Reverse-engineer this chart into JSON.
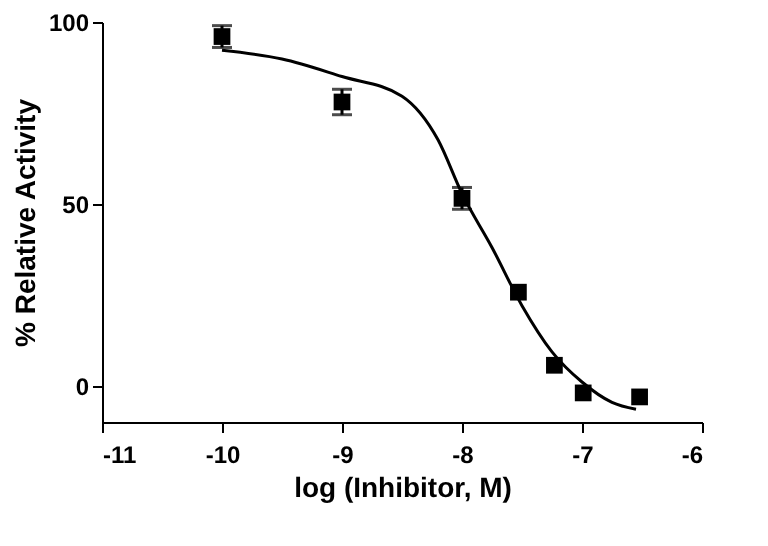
{
  "chart_data": {
    "type": "scatter",
    "xlabel": "log (Inhibitor, M)",
    "ylabel": "% Relative  Activity",
    "xlim": [
      -11,
      -6
    ],
    "xticks": [
      -11,
      -10,
      -9,
      -8,
      -7,
      -6
    ],
    "ylim": [
      -10,
      100
    ],
    "yticks": [
      0,
      50,
      100
    ],
    "grid": false,
    "marker": "square",
    "series": [
      {
        "color": "#000000",
        "x": [
          -10,
          -9,
          -8,
          -7.53,
          -7.23,
          -6.99,
          -6.52
        ],
        "values": [
          96,
          78,
          51.5,
          25.7,
          5.6,
          -2,
          -3.1
        ],
        "errors": [
          3,
          3.5,
          3,
          null,
          null,
          null,
          null
        ]
      },
      {
        "type": "line",
        "color": "#000000",
        "marker": "none",
        "x": [
          -10,
          -9.5,
          -9,
          -8.5,
          -8.2,
          -8,
          -7.75,
          -7.5,
          -7.25,
          -7,
          -6.75,
          -6.55
        ],
        "values": [
          92.2,
          89.8,
          85,
          79.6,
          67.6,
          52.8,
          38,
          22,
          9.3,
          1,
          -4.6,
          -6.5
        ]
      }
    ]
  }
}
